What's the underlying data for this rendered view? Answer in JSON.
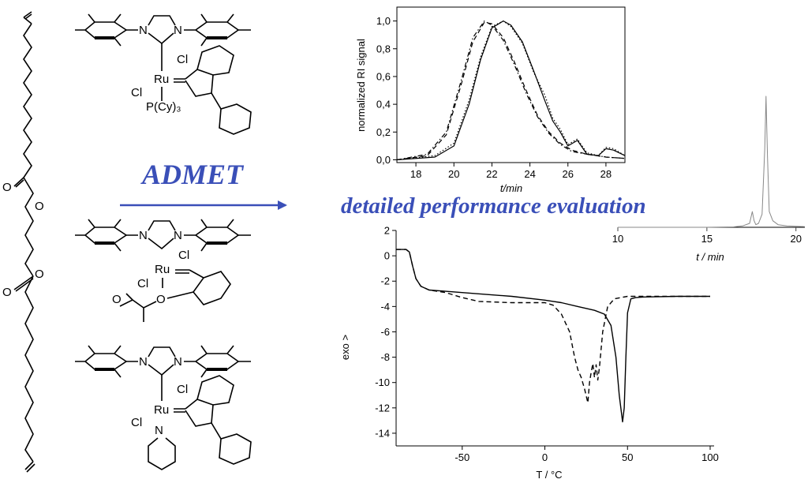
{
  "headline": {
    "reaction": "ADMET",
    "evaluation": "detailed performance evaluation"
  },
  "structure_labels": {
    "monomer_o_top": "O",
    "monomer_o_ester_top": "O",
    "monomer_o_ester_bottom": "O",
    "monomer_o_bottom": "O",
    "cat1_ru": "Ru",
    "cat1_cl_a": "Cl",
    "cat1_cl_b": "Cl",
    "cat1_pcy3": "P(Cy)₃",
    "cat1_n1": "N",
    "cat1_n2": "N",
    "cat2_ru": "Ru",
    "cat2_cl_a": "Cl",
    "cat2_cl_b": "Cl",
    "cat2_o": "O",
    "cat2_ketone_o": "O",
    "cat2_n1": "N",
    "cat2_n2": "N",
    "cat3_ru": "Ru",
    "cat3_cl_a": "Cl",
    "cat3_cl_b": "Cl",
    "cat3_n_py": "N",
    "cat3_n1": "N",
    "cat3_n2": "N"
  },
  "chart_data": [
    {
      "type": "line",
      "id": "gpc",
      "xlabel": "t/min",
      "ylabel": "normalized RI signal",
      "xlim": [
        17,
        29
      ],
      "ylim": [
        -0.02,
        1.1
      ],
      "xticks": [
        "18",
        "20",
        "22",
        "24",
        "26",
        "28"
      ],
      "yticks": [
        "0,0",
        "0,2",
        "0,4",
        "0,6",
        "0,8",
        "1,0"
      ],
      "series": [
        {
          "style": "solid",
          "x": [
            17,
            19,
            20,
            20.8,
            21.4,
            22,
            22.6,
            23,
            23.6,
            24.2,
            24.8,
            25.2,
            25.6,
            26,
            26.5,
            27,
            27.6,
            28,
            28.4,
            29
          ],
          "y": [
            0,
            0.02,
            0.1,
            0.4,
            0.72,
            0.95,
            1.0,
            0.97,
            0.85,
            0.64,
            0.42,
            0.28,
            0.2,
            0.1,
            0.14,
            0.04,
            0.03,
            0.08,
            0.07,
            0.03
          ]
        },
        {
          "style": "dotted",
          "x": [
            17,
            19,
            20,
            20.8,
            21.4,
            22,
            22.6,
            23,
            23.6,
            24.2,
            24.8,
            25.2,
            25.6,
            26,
            26.5,
            27,
            27.6,
            28,
            28.4,
            29
          ],
          "y": [
            0,
            0.03,
            0.12,
            0.43,
            0.74,
            0.96,
            1.0,
            0.96,
            0.84,
            0.63,
            0.46,
            0.3,
            0.22,
            0.11,
            0.15,
            0.05,
            0.03,
            0.09,
            0.08,
            0.03
          ]
        },
        {
          "style": "dashed",
          "x": [
            17,
            18.6,
            19.6,
            20.4,
            21,
            21.6,
            22,
            22.6,
            23.2,
            23.8,
            24.4,
            25,
            25.6,
            26.2,
            27,
            28,
            29
          ],
          "y": [
            0,
            0.03,
            0.18,
            0.55,
            0.85,
            0.99,
            0.98,
            0.88,
            0.7,
            0.5,
            0.32,
            0.2,
            0.12,
            0.07,
            0.04,
            0.02,
            0.01
          ]
        },
        {
          "style": "dashdot",
          "x": [
            17,
            18.6,
            19.6,
            20.4,
            21,
            21.6,
            22,
            22.6,
            23.2,
            23.8,
            24.4,
            25,
            25.6,
            26.2,
            27,
            28,
            29
          ],
          "y": [
            0,
            0.04,
            0.2,
            0.58,
            0.88,
            1.0,
            0.97,
            0.86,
            0.68,
            0.48,
            0.31,
            0.19,
            0.11,
            0.06,
            0.04,
            0.02,
            0.01
          ]
        }
      ]
    },
    {
      "type": "line",
      "id": "gc",
      "xlabel": "t / min",
      "ylabel": "",
      "xlim": [
        10,
        20.5
      ],
      "xticks": [
        "10",
        "15",
        "20"
      ],
      "color": "#888888",
      "series": [
        {
          "style": "solid",
          "x": [
            10,
            15,
            16.5,
            17,
            17.4,
            17.55,
            17.65,
            17.75,
            17.9,
            18.1,
            18.25,
            18.32,
            18.4,
            18.5,
            18.7,
            19,
            19.5,
            20.5
          ],
          "y": [
            0,
            0,
            0.003,
            0.01,
            0.03,
            0.12,
            0.05,
            0.02,
            0.03,
            0.1,
            0.6,
            1.0,
            0.55,
            0.12,
            0.05,
            0.02,
            0.01,
            0.005
          ]
        }
      ]
    },
    {
      "type": "line",
      "id": "dsc",
      "xlabel": "T / °C",
      "ylabel": "exo >",
      "xlim": [
        -90,
        100
      ],
      "ylim": [
        -15,
        2
      ],
      "xticks": [
        "-50",
        "0",
        "50",
        "100"
      ],
      "yticks": [
        "-14",
        "-12",
        "-10",
        "-8",
        "-6",
        "-4",
        "-2",
        "0",
        "2"
      ],
      "series": [
        {
          "style": "solid",
          "x": [
            -90,
            -84,
            -82,
            -80,
            -78,
            -75,
            -70,
            -60,
            -40,
            -20,
            0,
            10,
            20,
            30,
            36,
            40,
            43,
            45,
            47,
            48,
            49,
            50,
            52,
            55,
            60,
            80,
            100
          ],
          "y": [
            0.5,
            0.5,
            0.3,
            -0.8,
            -1.8,
            -2.4,
            -2.7,
            -2.8,
            -3.0,
            -3.2,
            -3.5,
            -3.7,
            -4.0,
            -4.3,
            -4.6,
            -5.5,
            -8,
            -11,
            -13.1,
            -12,
            -8,
            -4.5,
            -3.4,
            -3.3,
            -3.25,
            -3.2,
            -3.2
          ]
        },
        {
          "style": "dashed",
          "x": [
            -90,
            -84,
            -82,
            -80,
            -78,
            -75,
            -70,
            -60,
            -50,
            -40,
            -20,
            0,
            5,
            10,
            15,
            18,
            20,
            22,
            24,
            26,
            27,
            28,
            29,
            30,
            31,
            32,
            33,
            35,
            38,
            42,
            50,
            60,
            80,
            100
          ],
          "y": [
            0.5,
            0.5,
            0.3,
            -0.8,
            -1.8,
            -2.4,
            -2.7,
            -2.9,
            -3.3,
            -3.6,
            -3.7,
            -3.7,
            -3.9,
            -4.6,
            -6.0,
            -8.0,
            -9.0,
            -9.6,
            -10.5,
            -11.6,
            -10.0,
            -9.2,
            -8.5,
            -9.6,
            -8.6,
            -9.8,
            -8.8,
            -6.0,
            -4.0,
            -3.4,
            -3.2,
            -3.2,
            -3.2,
            -3.2
          ]
        }
      ]
    }
  ]
}
